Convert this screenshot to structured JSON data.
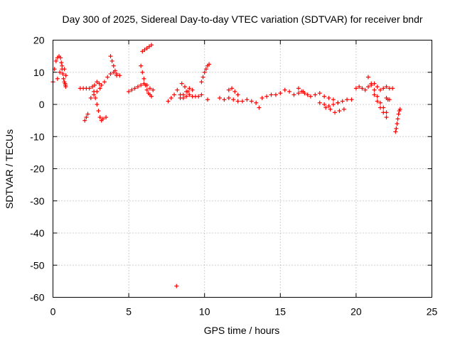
{
  "chart_data": {
    "type": "scatter",
    "title": "Day 300 of 2025, Sidereal Day-to-day VTEC variation (SDTVAR) for receiver bndr",
    "xlabel": "GPS time / hours",
    "ylabel": "SDTVAR / TECUs",
    "xlim": [
      0,
      25
    ],
    "ylim": [
      -60,
      20
    ],
    "xticks": [
      "0",
      "5",
      "10",
      "15",
      "20",
      "25"
    ],
    "yticks": [
      "20",
      "10",
      "0",
      "-10",
      "-20",
      "-30",
      "-40",
      "-50",
      "-60"
    ],
    "grid": true,
    "marker": "+",
    "color": "#ff0000",
    "series": [
      {
        "name": "SDTVAR",
        "x": [
          0.0,
          0.1,
          0.2,
          0.3,
          0.4,
          0.5,
          0.55,
          0.6,
          0.65,
          0.7,
          0.75,
          0.8,
          0.82,
          0.84,
          0.3,
          0.45,
          0.6,
          0.75,
          0.85,
          2.1,
          2.2,
          2.3,
          1.8,
          2.0,
          2.2,
          2.4,
          2.6,
          2.75,
          2.9,
          3.05,
          3.2,
          3.4,
          3.6,
          3.8,
          4.0,
          4.2,
          4.4,
          2.7,
          2.8,
          2.9,
          3.0,
          3.1,
          3.2,
          3.3,
          3.5,
          2.5,
          2.7,
          2.9,
          3.1,
          3.8,
          3.9,
          4.0,
          4.1,
          4.2,
          5.0,
          5.2,
          5.4,
          5.6,
          5.8,
          6.0,
          6.2,
          6.4,
          6.6,
          5.8,
          5.9,
          6.0,
          6.1,
          6.2,
          6.3,
          6.4,
          6.5,
          5.9,
          6.05,
          6.2,
          6.35,
          6.5,
          7.6,
          7.8,
          8.0,
          8.2,
          8.4,
          8.6,
          8.8,
          9.0,
          9.2,
          9.4,
          9.6,
          9.8,
          8.5,
          8.7,
          8.9,
          8.4,
          8.6,
          8.8,
          9.0,
          9.2,
          9.8,
          9.9,
          10.0,
          10.1,
          10.2,
          10.3,
          10.2,
          8.15,
          11.0,
          11.3,
          11.6,
          11.9,
          12.2,
          12.5,
          12.8,
          13.1,
          13.4,
          13.6,
          11.6,
          11.8,
          12.0,
          12.2,
          13.8,
          14.1,
          14.4,
          14.7,
          15.0,
          15.3,
          15.6,
          15.9,
          16.2,
          16.5,
          16.8,
          16.2,
          16.4,
          16.6,
          17.0,
          17.3,
          17.6,
          17.9,
          18.2,
          18.5,
          18.8,
          17.6,
          17.9,
          18.2,
          18.5,
          18.8,
          19.1,
          19.4,
          19.7,
          18.0,
          18.3,
          18.6,
          18.9,
          19.2,
          20.0,
          20.2,
          20.4,
          20.6,
          20.8,
          21.0,
          21.2,
          21.4,
          21.6,
          21.8,
          22.0,
          22.2,
          22.4,
          20.8,
          21.0,
          21.2,
          21.4,
          21.6,
          21.8,
          22.0,
          21.2,
          21.4,
          21.6,
          21.8,
          22.0,
          22.0,
          22.1,
          22.2,
          22.6,
          22.65,
          22.7,
          22.75,
          22.8,
          22.85,
          22.9
        ],
        "y": [
          7,
          11,
          13.5,
          14.5,
          15,
          14.5,
          13,
          11,
          9.5,
          8,
          7,
          6.5,
          6,
          5.5,
          8,
          10,
          12,
          11,
          9,
          -5,
          -4,
          -3,
          5,
          5,
          5,
          5,
          5.5,
          6,
          7,
          6.5,
          6,
          7,
          8.5,
          9.5,
          10,
          9.5,
          9,
          4,
          2,
          0,
          -2,
          -4,
          -5,
          -4.5,
          -4,
          2,
          3,
          4,
          5,
          15,
          13.5,
          12,
          10.5,
          9,
          4,
          4.5,
          5,
          5.5,
          6,
          6.5,
          6,
          5,
          4.5,
          12,
          10,
          8,
          6,
          4.5,
          3.5,
          3,
          2.5,
          16.5,
          17,
          17.5,
          18,
          18.5,
          1,
          2,
          3,
          4.5,
          3,
          2,
          2.5,
          3,
          2.5,
          2.5,
          2.5,
          3,
          6.5,
          5.5,
          4,
          2,
          3,
          4,
          5,
          4.5,
          7,
          8.5,
          10,
          11,
          12,
          12.5,
          1.5,
          -56.5,
          2,
          1.5,
          2,
          1.5,
          1,
          1,
          1.5,
          1,
          0.5,
          -1,
          4.5,
          5,
          4,
          3,
          2,
          2.5,
          3,
          3,
          3.5,
          4.5,
          4,
          3,
          3.5,
          4,
          3,
          5,
          4,
          3.5,
          2.5,
          3,
          3.5,
          2.5,
          2,
          1.5,
          0.5,
          0.5,
          0,
          -0.5,
          0,
          0.5,
          1,
          1.5,
          1.5,
          -1,
          -1.5,
          -2.5,
          -2,
          -1.5,
          5,
          5.5,
          5,
          4.5,
          5.5,
          6,
          6.5,
          5.5,
          4.5,
          5,
          5.5,
          5,
          5,
          8.5,
          6.5,
          4.5,
          2.5,
          0.5,
          -1,
          -2.5,
          3,
          1,
          -1,
          -2.5,
          -4,
          2,
          1.5,
          1.5,
          -8.5,
          -7.5,
          -6,
          -4.5,
          -3,
          -2,
          -1.5
        ]
      }
    ]
  }
}
